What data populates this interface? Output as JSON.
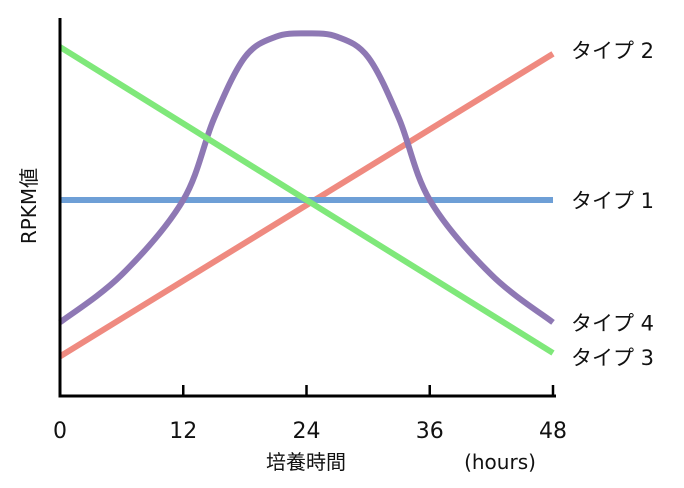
{
  "chart_data": {
    "type": "line",
    "xlabel": "培養時間",
    "xunit": "(hours)",
    "ylabel": "RPKM値",
    "xlim": [
      0,
      48
    ],
    "ylim": [
      0,
      100
    ],
    "xticks": [
      "0",
      "12",
      "24",
      "36",
      "48"
    ],
    "grid": false,
    "series": [
      {
        "name": "タイプ 2",
        "color": "#ef8a80",
        "shape": "linear",
        "x": [
          0,
          48
        ],
        "y": [
          4,
          93
        ]
      },
      {
        "name": "タイプ 1",
        "color": "#6e9fd6",
        "shape": "linear",
        "x": [
          0,
          48
        ],
        "y": [
          50,
          50
        ]
      },
      {
        "name": "タイプ 4",
        "color": "#8e78b4",
        "shape": "bell",
        "x": [
          0,
          6,
          12,
          15,
          18,
          21,
          24,
          27,
          30,
          33,
          36,
          42,
          48
        ],
        "y": [
          14,
          28,
          50,
          74,
          92,
          98,
          99,
          98,
          92,
          74,
          50,
          28,
          14
        ]
      },
      {
        "name": "タイプ 3",
        "color": "#7fe87a",
        "shape": "linear",
        "x": [
          0,
          48
        ],
        "y": [
          95,
          5
        ]
      }
    ]
  }
}
